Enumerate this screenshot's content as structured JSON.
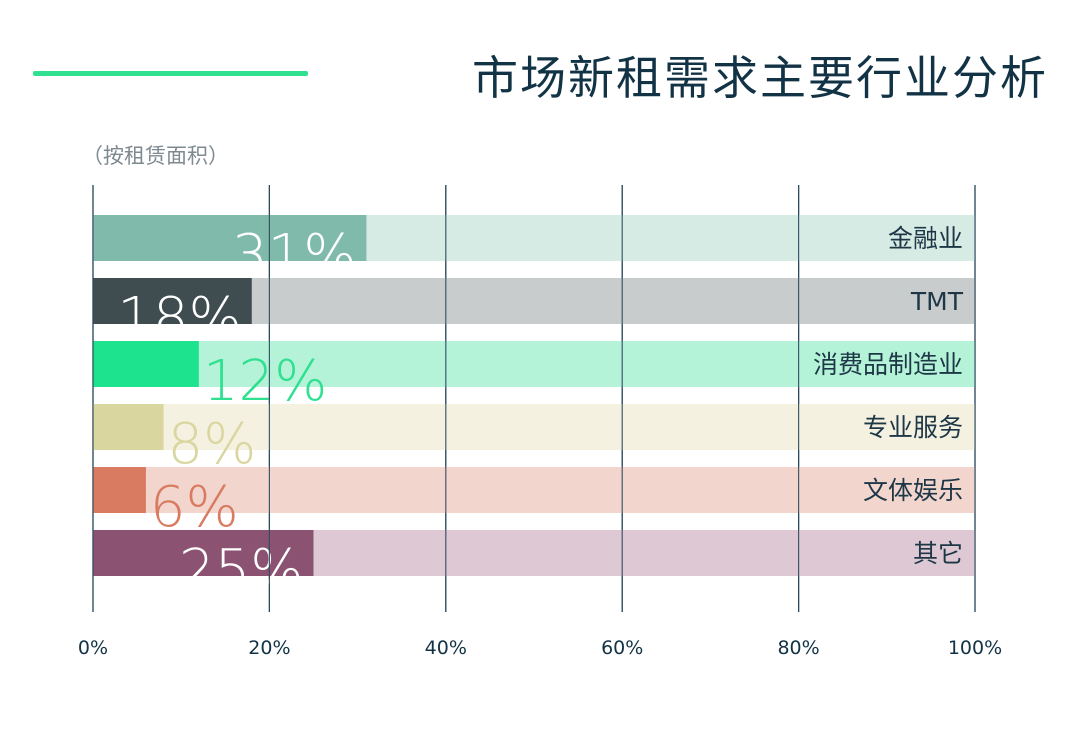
{
  "title": "市场新租需求主要行业分析",
  "subtitle": "（按租赁面积）",
  "colors": {
    "accent_line": "#2ee08f",
    "title": "#123345",
    "axis": "#2c4a5e"
  },
  "chart_data": {
    "type": "bar",
    "orientation": "horizontal",
    "stacked_to_100": true,
    "categories": [
      "金融业",
      "TMT",
      "消费品制造业",
      "专业服务",
      "文体娱乐",
      "其它"
    ],
    "values": [
      31,
      18,
      12,
      8,
      6,
      25
    ],
    "value_labels": [
      "31%",
      "18%",
      "12%",
      "8%",
      "6%",
      "25%"
    ],
    "xlim": [
      0,
      100
    ],
    "xticks": [
      "0%",
      "20%",
      "40%",
      "60%",
      "80%",
      "100%"
    ],
    "grid": true,
    "bar_colors": [
      "#7fbaab",
      "#3f4c50",
      "#1ee38e",
      "#dad6a0",
      "#d97b60",
      "#8b5272"
    ],
    "track_colors": [
      "#d7ebe5",
      "#c9cccd",
      "#b4f3d8",
      "#f4f1e0",
      "#f2d5cd",
      "#ddc8d4"
    ],
    "label_colors": [
      "#ffffff",
      "#ffffff",
      "#2ee08f",
      "#dad6a0",
      "#d97b60",
      "#ffffff"
    ]
  }
}
